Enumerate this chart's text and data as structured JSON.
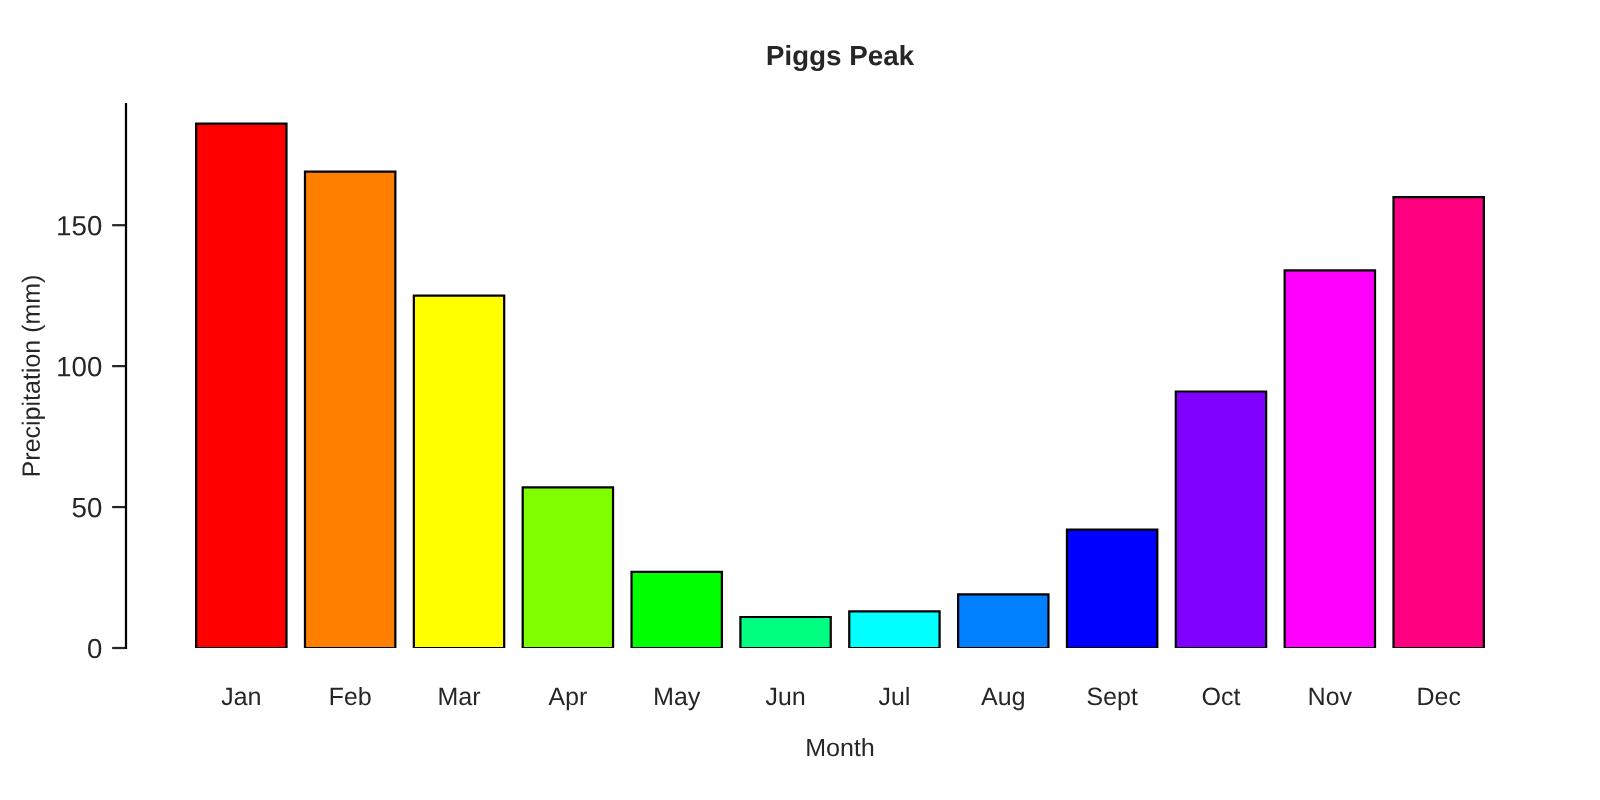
{
  "chart_data": {
    "type": "bar",
    "title": "Piggs Peak",
    "xlabel": "Month",
    "ylabel": "Precipitation (mm)",
    "categories": [
      "Jan",
      "Feb",
      "Mar",
      "Apr",
      "May",
      "Jun",
      "Jul",
      "Aug",
      "Sept",
      "Oct",
      "Nov",
      "Dec"
    ],
    "values": [
      186,
      169,
      125,
      57,
      27,
      11,
      13,
      19,
      42,
      91,
      134,
      160
    ],
    "colors": [
      "#ff0000",
      "#ff8000",
      "#ffff00",
      "#80ff00",
      "#00ff00",
      "#00ff80",
      "#00ffff",
      "#0080ff",
      "#0000ff",
      "#8000ff",
      "#ff00ff",
      "#ff0080"
    ],
    "ylim": [
      0,
      193
    ],
    "yticks": [
      0,
      50,
      100,
      150
    ],
    "grid": false,
    "legend": false
  }
}
